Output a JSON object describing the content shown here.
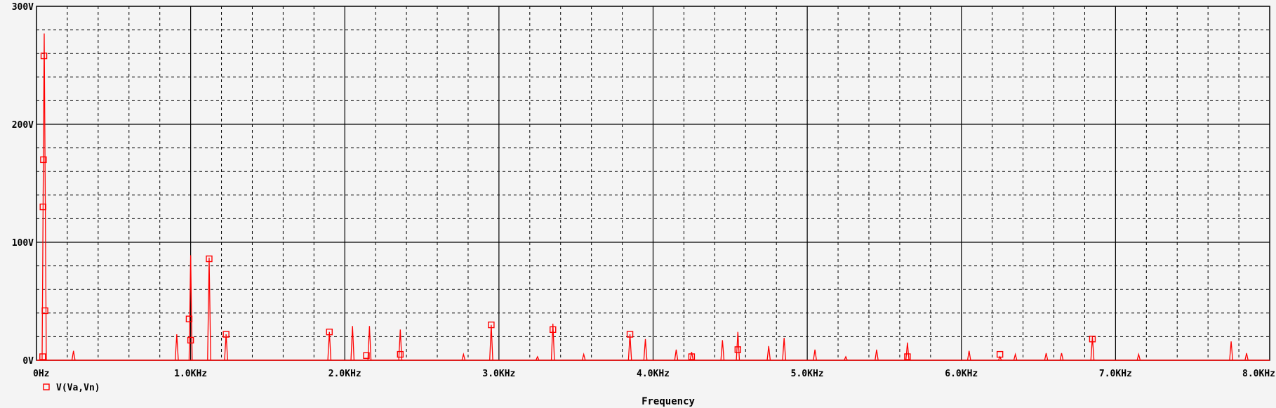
{
  "chart_data": {
    "type": "line",
    "xlabel": "Frequency",
    "ylabel": "",
    "xlim": [
      0,
      8000
    ],
    "ylim": [
      0,
      300
    ],
    "x_ticks": [
      {
        "value": 0,
        "label": "0Hz"
      },
      {
        "value": 1000,
        "label": "1.0KHz"
      },
      {
        "value": 2000,
        "label": "2.0KHz"
      },
      {
        "value": 3000,
        "label": "3.0KHz"
      },
      {
        "value": 4000,
        "label": "4.0KHz"
      },
      {
        "value": 5000,
        "label": "5.0KHz"
      },
      {
        "value": 6000,
        "label": "6.0KHz"
      },
      {
        "value": 7000,
        "label": "7.0KHz"
      },
      {
        "value": 8000,
        "label": "8.0KHz"
      }
    ],
    "y_ticks": [
      {
        "value": 0,
        "label": "0V"
      },
      {
        "value": 100,
        "label": "100V"
      },
      {
        "value": 200,
        "label": "200V"
      },
      {
        "value": 300,
        "label": "300V"
      }
    ],
    "grid": true,
    "legend_placement": "bottom-left",
    "series": [
      {
        "name": "V(Va,Vn)",
        "color": "#ff0000",
        "marker": "square",
        "peaks": [
          {
            "x": 50,
            "y": 277
          },
          {
            "x": 240,
            "y": 8
          },
          {
            "x": 910,
            "y": 22
          },
          {
            "x": 1000,
            "y": 89
          },
          {
            "x": 1120,
            "y": 87
          },
          {
            "x": 1230,
            "y": 22
          },
          {
            "x": 1900,
            "y": 24
          },
          {
            "x": 2050,
            "y": 29
          },
          {
            "x": 2160,
            "y": 29
          },
          {
            "x": 2360,
            "y": 26
          },
          {
            "x": 2770,
            "y": 5
          },
          {
            "x": 2950,
            "y": 30
          },
          {
            "x": 3250,
            "y": 3
          },
          {
            "x": 3350,
            "y": 31
          },
          {
            "x": 3550,
            "y": 5
          },
          {
            "x": 3850,
            "y": 22
          },
          {
            "x": 3950,
            "y": 18
          },
          {
            "x": 4150,
            "y": 9
          },
          {
            "x": 4250,
            "y": 7
          },
          {
            "x": 4450,
            "y": 17
          },
          {
            "x": 4550,
            "y": 24
          },
          {
            "x": 4750,
            "y": 12
          },
          {
            "x": 4850,
            "y": 19
          },
          {
            "x": 5050,
            "y": 9
          },
          {
            "x": 5250,
            "y": 3
          },
          {
            "x": 5450,
            "y": 9
          },
          {
            "x": 5650,
            "y": 15
          },
          {
            "x": 6050,
            "y": 8
          },
          {
            "x": 6250,
            "y": 3
          },
          {
            "x": 6350,
            "y": 5
          },
          {
            "x": 6550,
            "y": 6
          },
          {
            "x": 6650,
            "y": 6
          },
          {
            "x": 6850,
            "y": 20
          },
          {
            "x": 7150,
            "y": 5
          },
          {
            "x": 7750,
            "y": 16
          },
          {
            "x": 7850,
            "y": 6
          }
        ],
        "markers": [
          {
            "x": 40,
            "y": 3
          },
          {
            "x": 42,
            "y": 130
          },
          {
            "x": 45,
            "y": 170
          },
          {
            "x": 48,
            "y": 258
          },
          {
            "x": 55,
            "y": 42
          },
          {
            "x": 990,
            "y": 35
          },
          {
            "x": 1000,
            "y": 17
          },
          {
            "x": 1120,
            "y": 86
          },
          {
            "x": 1230,
            "y": 22
          },
          {
            "x": 1900,
            "y": 24
          },
          {
            "x": 2140,
            "y": 4
          },
          {
            "x": 2360,
            "y": 5
          },
          {
            "x": 2950,
            "y": 30
          },
          {
            "x": 3350,
            "y": 26
          },
          {
            "x": 3850,
            "y": 22
          },
          {
            "x": 4250,
            "y": 3
          },
          {
            "x": 4550,
            "y": 9
          },
          {
            "x": 5650,
            "y": 3
          },
          {
            "x": 6250,
            "y": 5
          },
          {
            "x": 6850,
            "y": 18
          }
        ]
      }
    ]
  }
}
